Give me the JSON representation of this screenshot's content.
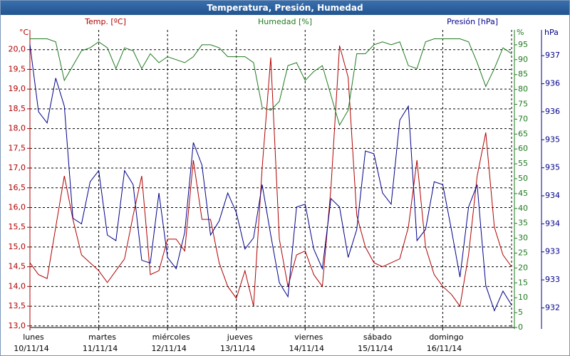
{
  "chart_data": {
    "type": "line",
    "title": "Temperatura, Presión, Humedad",
    "y_unit": "°C",
    "y2_unit": "%",
    "y3_unit": "hPa",
    "xlim": [
      0,
      7
    ],
    "xticks": [
      {
        "value": 0,
        "label": "lunes",
        "date": "10/11/14"
      },
      {
        "value": 1,
        "label": "martes",
        "date": "11/11/14"
      },
      {
        "value": 2,
        "label": "miércoles",
        "date": "12/11/14"
      },
      {
        "value": 3,
        "label": "jueves",
        "date": "13/11/14"
      },
      {
        "value": 4,
        "label": "viernes",
        "date": "14/11/14"
      },
      {
        "value": 5,
        "label": "sábado",
        "date": "15/11/14"
      },
      {
        "value": 6,
        "label": "domingo",
        "date": "16/11/14"
      }
    ],
    "ylim": [
      12.96,
      20.5
    ],
    "yticks": [
      {
        "value": 13,
        "label": "13,0"
      },
      {
        "value": 13.5,
        "label": "13,5"
      },
      {
        "value": 14,
        "label": "14,0"
      },
      {
        "value": 14.5,
        "label": "14,5"
      },
      {
        "value": 15,
        "label": "15,0"
      },
      {
        "value": 15.5,
        "label": "15,5"
      },
      {
        "value": 16,
        "label": "16,0"
      },
      {
        "value": 16.5,
        "label": "16,5"
      },
      {
        "value": 17,
        "label": "17,0"
      },
      {
        "value": 17.5,
        "label": "17,5"
      },
      {
        "value": 18,
        "label": "18,0"
      },
      {
        "value": 18.5,
        "label": "18,5"
      },
      {
        "value": 19,
        "label": "19,0"
      },
      {
        "value": 19.5,
        "label": "19,5"
      },
      {
        "value": 20,
        "label": "20,0"
      }
    ],
    "y2lim": [
      0,
      100
    ],
    "y2ticks": [
      0,
      5,
      10,
      15,
      20,
      25,
      30,
      35,
      40,
      45,
      50,
      55,
      60,
      65,
      70,
      75,
      80,
      85,
      90,
      95
    ],
    "y3lim": [
      932.15,
      937.46
    ],
    "y3ticks": [
      {
        "value": 932.5,
        "label": "932"
      },
      {
        "value": 933,
        "label": "933"
      },
      {
        "value": 933.5,
        "label": "933"
      },
      {
        "value": 934,
        "label": "934"
      },
      {
        "value": 934.5,
        "label": "934"
      },
      {
        "value": 935,
        "label": "935"
      },
      {
        "value": 935.5,
        "label": "935"
      },
      {
        "value": 936,
        "label": "936"
      },
      {
        "value": 936.5,
        "label": "936"
      },
      {
        "value": 937,
        "label": "937"
      }
    ],
    "grid": true,
    "x": [
      0,
      0.125,
      0.25,
      0.375,
      0.5,
      0.625,
      0.75,
      0.875,
      1,
      1.125,
      1.25,
      1.375,
      1.5,
      1.625,
      1.75,
      1.875,
      2,
      2.125,
      2.25,
      2.375,
      2.5,
      2.625,
      2.75,
      2.875,
      3,
      3.125,
      3.25,
      3.375,
      3.5,
      3.625,
      3.75,
      3.875,
      4,
      4.125,
      4.25,
      4.375,
      4.5,
      4.625,
      4.75,
      4.875,
      5,
      5.125,
      5.25,
      5.375,
      5.5,
      5.625,
      5.75,
      5.875,
      6,
      6.125,
      6.25,
      6.375,
      6.5,
      6.625,
      6.75,
      6.875,
      7
    ],
    "series": [
      {
        "name": "Temp. [ºC]",
        "color": "#b00000",
        "axis": "y",
        "values": [
          14.6,
          14.3,
          14.2,
          15.5,
          16.8,
          15.7,
          14.8,
          14.6,
          14.4,
          14.1,
          14.4,
          14.7,
          15.8,
          16.8,
          14.3,
          14.4,
          15.2,
          15.2,
          14.9,
          17.2,
          15.7,
          15.7,
          14.6,
          14.0,
          13.7,
          14.4,
          13.5,
          17.0,
          19.8,
          15.2,
          14.0,
          14.8,
          14.9,
          14.3,
          14.0,
          16.5,
          20.1,
          19.3,
          15.8,
          15.0,
          14.6,
          14.5,
          14.6,
          14.7,
          15.5,
          17.2,
          15.0,
          14.3,
          14.0,
          13.8,
          13.5,
          14.8,
          16.8,
          17.9,
          15.5,
          14.8,
          14.5
        ]
      },
      {
        "name": "Humedad [%]",
        "color": "#1f7a1f",
        "axis": "y2",
        "values": [
          97,
          97,
          97,
          96,
          83,
          88,
          93,
          94,
          96,
          94,
          87,
          94,
          93,
          87,
          92,
          89,
          91,
          90,
          89,
          91,
          95,
          95,
          94,
          91,
          91,
          91,
          89,
          74,
          73,
          76,
          88,
          89,
          83,
          86,
          88,
          78,
          68,
          73,
          92,
          92,
          95,
          96,
          95,
          96,
          88,
          87,
          96,
          97,
          97,
          97,
          97,
          96,
          89,
          81,
          87,
          94,
          92
        ]
      },
      {
        "name": "Presión [hPa]",
        "color": "#00008b",
        "axis": "y3",
        "values": [
          937.2,
          936.0,
          935.8,
          936.6,
          936.1,
          934.1,
          934.0,
          934.75,
          934.95,
          933.8,
          933.7,
          934.95,
          934.7,
          933.35,
          933.3,
          934.55,
          933.4,
          933.2,
          933.85,
          935.45,
          935.05,
          933.8,
          934.05,
          934.55,
          934.2,
          933.55,
          933.75,
          934.7,
          933.8,
          932.95,
          932.7,
          934.3,
          934.35,
          933.55,
          933.2,
          934.45,
          934.3,
          933.4,
          933.9,
          935.3,
          935.25,
          934.55,
          934.35,
          935.85,
          936.1,
          933.7,
          933.9,
          934.75,
          934.7,
          933.9,
          933.05,
          934.3,
          934.7,
          932.9,
          932.45,
          932.8,
          932.55
        ]
      }
    ]
  }
}
